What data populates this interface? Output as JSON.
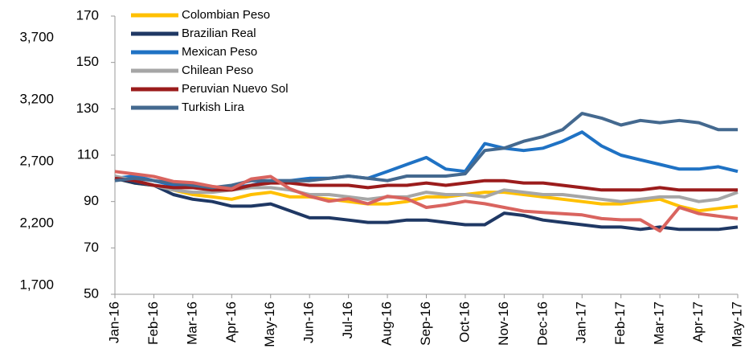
{
  "chart_data": {
    "type": "line",
    "categories": [
      "Jan-16",
      null,
      "Feb-16",
      null,
      "Mar-16",
      null,
      "Apr-16",
      null,
      "May-16",
      null,
      "Jun-16",
      null,
      "Jul-16",
      null,
      "Aug-16",
      null,
      "Sep-16",
      null,
      "Oct-16",
      null,
      "Nov-16",
      null,
      "Dec-16",
      null,
      "Jan-17",
      null,
      "Feb-17",
      null,
      "Mar-17",
      null,
      "Apr-17",
      null,
      "May-17"
    ],
    "series": [
      {
        "name": "Colombian Peso",
        "color": "#ffc000",
        "values": [
          100,
          98,
          97,
          95,
          93,
          92,
          91,
          93,
          94,
          92,
          92,
          91,
          90,
          89,
          89,
          90,
          92,
          92,
          93,
          94,
          94,
          93,
          92,
          91,
          90,
          89,
          89,
          90,
          91,
          88,
          86,
          87,
          88
        ]
      },
      {
        "name": "Brazilian Real",
        "color": "#1f3864",
        "values": [
          100,
          98,
          97,
          93,
          91,
          90,
          88,
          88,
          89,
          86,
          83,
          83,
          82,
          81,
          81,
          82,
          82,
          81,
          80,
          80,
          85,
          84,
          82,
          81,
          80,
          79,
          79,
          78,
          79,
          78,
          78,
          78,
          79
        ]
      },
      {
        "name": "Mexican Peso",
        "color": "#1f72c4",
        "values": [
          100,
          101,
          99,
          97,
          96,
          96,
          96,
          97,
          99,
          99,
          100,
          100,
          101,
          100,
          103,
          106,
          109,
          104,
          103,
          115,
          113,
          112,
          113,
          116,
          120,
          114,
          110,
          108,
          106,
          104,
          104,
          105,
          103
        ]
      },
      {
        "name": "Chilean Peso",
        "color": "#a6a6a6",
        "values": [
          101,
          99,
          97,
          95,
          94,
          94,
          95,
          96,
          96,
          95,
          93,
          93,
          92,
          91,
          92,
          92,
          94,
          93,
          93,
          92,
          95,
          94,
          93,
          93,
          92,
          91,
          90,
          91,
          92,
          92,
          90,
          91,
          94
        ]
      },
      {
        "name": "Peruvian Nuevo Sol",
        "color": "#9b1c1c",
        "values": [
          100,
          99,
          97,
          96,
          96,
          95,
          95,
          97,
          98,
          98,
          97,
          97,
          97,
          96,
          97,
          97,
          98,
          97,
          98,
          99,
          99,
          98,
          98,
          97,
          96,
          95,
          95,
          95,
          96,
          95,
          95,
          95,
          95
        ]
      },
      {
        "name": "Turkish Lira",
        "color": "#44698f",
        "values": [
          99,
          100,
          99,
          98,
          97,
          96,
          97,
          99,
          99,
          99,
          99,
          100,
          101,
          100,
          99,
          101,
          101,
          101,
          102,
          112,
          113,
          116,
          118,
          121,
          128,
          126,
          123,
          125,
          124,
          125,
          124,
          121,
          121
        ]
      },
      {
        "color": "#d9645f",
        "axis": "y2",
        "values": [
          2620,
          2600,
          2580,
          2540,
          2530,
          2500,
          2480,
          2560,
          2580,
          2480,
          2420,
          2380,
          2400,
          2360,
          2420,
          2400,
          2330,
          2350,
          2380,
          2360,
          2330,
          2300,
          2290,
          2280,
          2270,
          2240,
          2230,
          2230,
          2140,
          2330,
          2280,
          2260,
          2240
        ]
      }
    ],
    "ylim": [
      50,
      170
    ],
    "yticks": [
      50,
      70,
      90,
      110,
      130,
      150,
      170
    ],
    "y2lim": [
      1629,
      3875
    ],
    "y2ticks": [
      {
        "value": 1700,
        "label": "1,700"
      },
      {
        "value": 2200,
        "label": "2,200"
      },
      {
        "value": 2700,
        "label": "2,700"
      },
      {
        "value": 3200,
        "label": "3,200"
      },
      {
        "value": 3700,
        "label": "3,700"
      }
    ],
    "legend": "top-left"
  }
}
